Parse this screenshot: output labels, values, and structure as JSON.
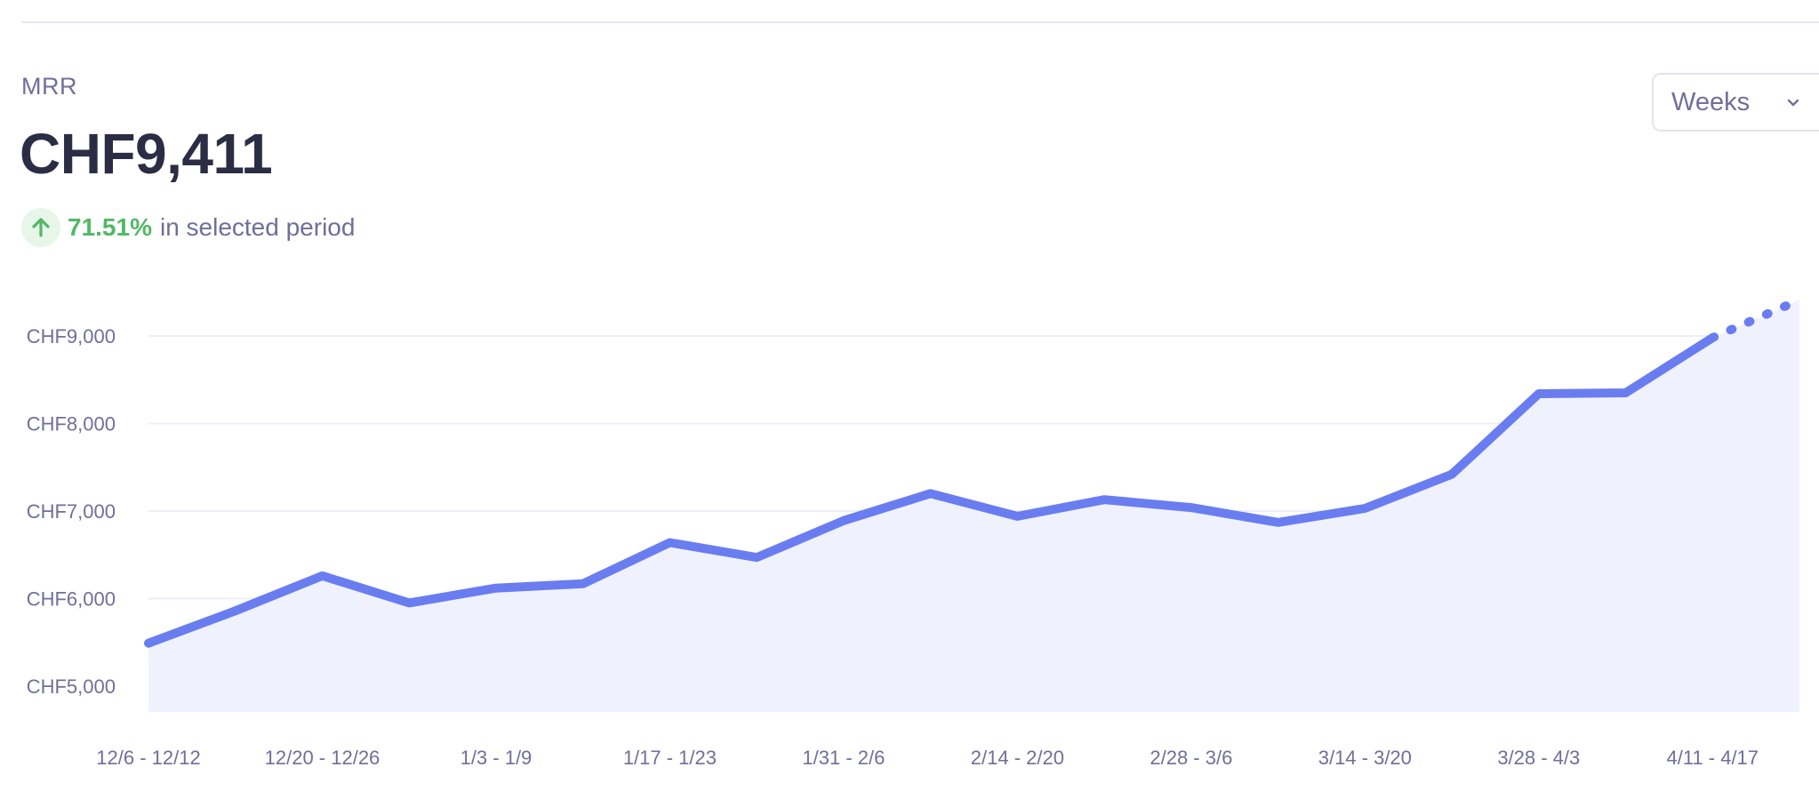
{
  "metric": {
    "label": "MRR",
    "value": "CHF9,411",
    "change_percent": "71.51%",
    "change_suffix": "in selected period",
    "change_icon": "arrow-up-icon"
  },
  "period_select": {
    "selected": "Weeks",
    "icon": "chevron-down-icon"
  },
  "colors": {
    "line": "#6a7df0",
    "area": "#eff1fc",
    "positive": "#52b865",
    "grid": "#eeeff6"
  },
  "chart_data": {
    "type": "area",
    "title": "",
    "xlabel": "",
    "ylabel": "",
    "ylim": [
      4700,
      9400
    ],
    "y_ticks": [
      5000,
      6000,
      7000,
      8000,
      9000
    ],
    "y_tick_labels": [
      "CHF5,000",
      "CHF6,000",
      "CHF7,000",
      "CHF8,000",
      "CHF9,000"
    ],
    "x_tick_labels": [
      "12/6 - 12/12",
      "12/20 - 12/26",
      "1/3 - 1/9",
      "1/17 - 1/23",
      "1/31 - 2/6",
      "2/14 - 2/20",
      "2/28 - 3/6",
      "3/14 - 3/20",
      "3/28 - 4/3",
      "4/11 - 4/17"
    ],
    "grid": true,
    "legend": "none",
    "series": [
      {
        "values": [
          5490,
          5860,
          6260,
          5950,
          6120,
          6170,
          6640,
          6470,
          6890,
          7200,
          6940,
          7130,
          7040,
          6870,
          7030,
          7420,
          8340,
          8350,
          8980,
          9411
        ],
        "last_segment_dashed": true
      }
    ]
  }
}
